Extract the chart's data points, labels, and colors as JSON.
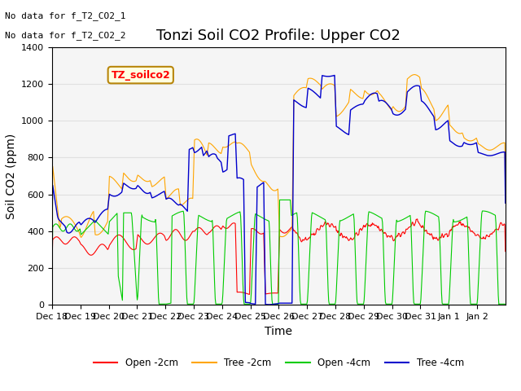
{
  "title": "Tonzi Soil CO2 Profile: Upper CO2",
  "ylabel": "Soil CO2 (ppm)",
  "xlabel": "Time",
  "no_data_text": [
    "No data for f_T2_CO2_1",
    "No data for f_T2_CO2_2"
  ],
  "legend_label": "TZ_soilco2",
  "legend_entries": [
    "Open -2cm",
    "Tree -2cm",
    "Open -4cm",
    "Tree -4cm"
  ],
  "legend_colors": [
    "#ff0000",
    "#ffa500",
    "#00cc00",
    "#0000cc"
  ],
  "ylim": [
    0,
    1400
  ],
  "xtick_labels": [
    "Dec 18",
    "Dec 19",
    "Dec 20",
    "Dec 21",
    "Dec 22",
    "Dec 23",
    "Dec 24",
    "Dec 25",
    "Dec 26",
    "Dec 27",
    "Dec 28",
    "Dec 29",
    "Dec 30",
    "Dec 31",
    "Jan 1",
    "Jan 2"
  ],
  "ytick_vals": [
    0,
    200,
    400,
    600,
    800,
    1000,
    1200,
    1400
  ],
  "grid_color": "#e0e0e0",
  "plot_bg": "#f5f5f5",
  "title_fontsize": 13,
  "axis_fontsize": 10
}
